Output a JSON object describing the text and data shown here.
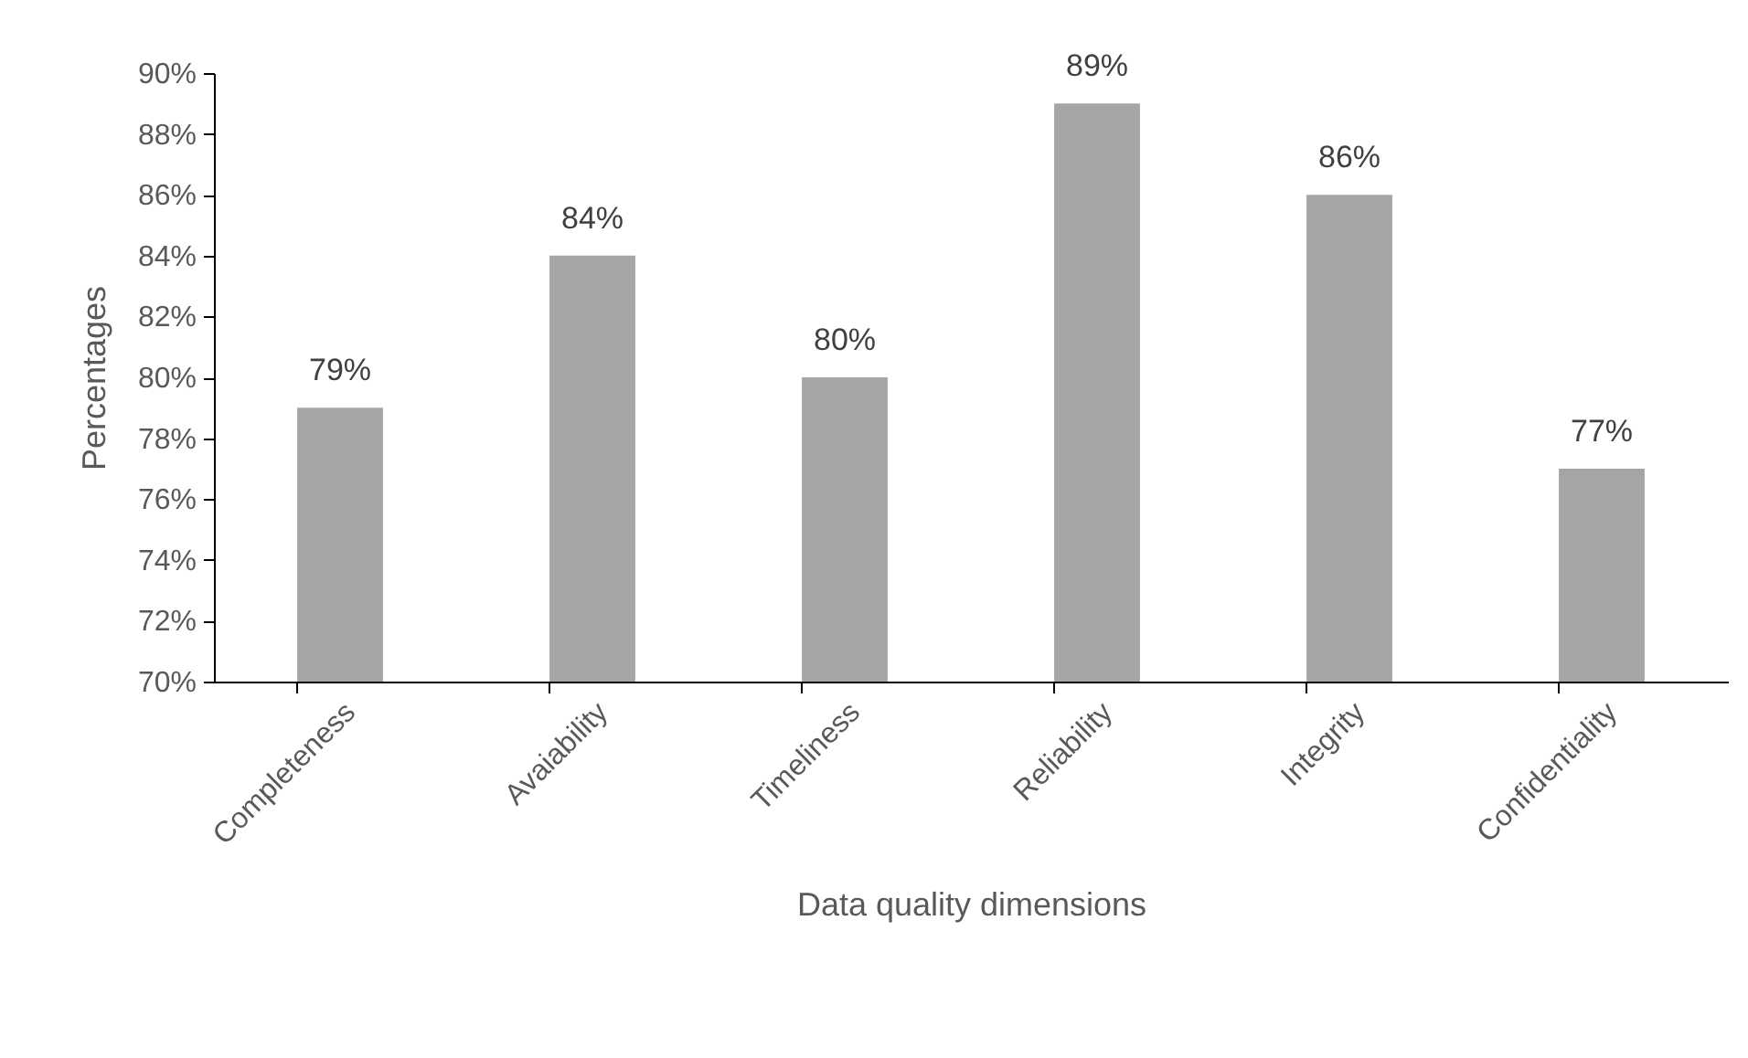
{
  "chart_data": {
    "type": "bar",
    "xlabel": "Data quality dimensions",
    "ylabel": "Percentages",
    "categories": [
      "Completeness",
      "Avaiability",
      "Timeliness",
      "Reliability",
      "Integrity",
      "Confidentiality"
    ],
    "values": [
      79,
      84,
      80,
      89,
      86,
      77
    ],
    "value_labels": [
      "79%",
      "84%",
      "80%",
      "89%",
      "86%",
      "77%"
    ],
    "color": "#a5a5a5",
    "ylim": [
      70,
      90
    ],
    "yticks": [
      {
        "value": 70,
        "label": "70%"
      },
      {
        "value": 72,
        "label": "72%"
      },
      {
        "value": 74,
        "label": "74%"
      },
      {
        "value": 76,
        "label": "76%"
      },
      {
        "value": 78,
        "label": "78%"
      },
      {
        "value": 80,
        "label": "80%"
      },
      {
        "value": 82,
        "label": "82%"
      },
      {
        "value": 84,
        "label": "84%"
      },
      {
        "value": 86,
        "label": "86%"
      },
      {
        "value": 88,
        "label": "88%"
      },
      {
        "value": 90,
        "label": "90%"
      }
    ],
    "grid": false
  }
}
